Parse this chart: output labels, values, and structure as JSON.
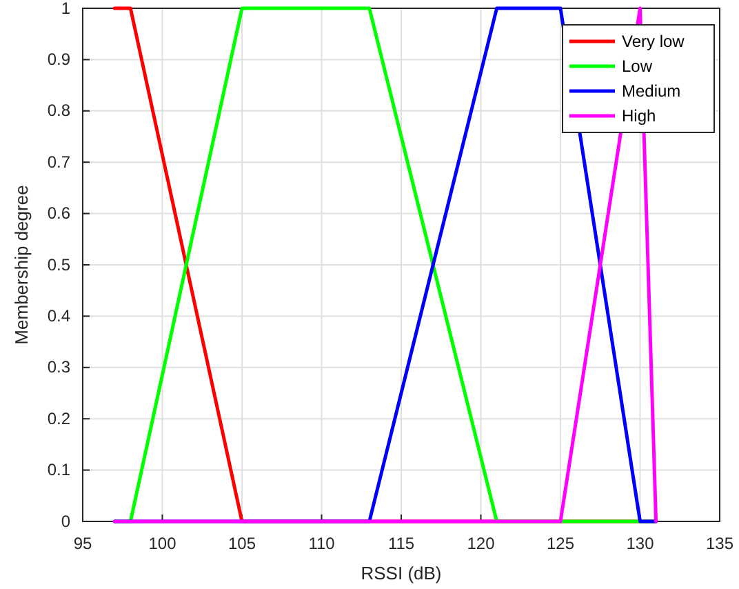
{
  "chart_data": {
    "type": "line",
    "xlabel": "RSSI (dB)",
    "ylabel": "Membership degree",
    "xlim": [
      95,
      135
    ],
    "xticks": [
      95,
      100,
      105,
      110,
      115,
      120,
      125,
      130,
      135
    ],
    "ylim": [
      0,
      1
    ],
    "yticks": [
      0,
      0.1,
      0.2,
      0.3,
      0.4,
      0.5,
      0.6,
      0.7,
      0.8,
      0.9,
      1
    ],
    "grid": true,
    "legend": "top right",
    "line_style": "solid",
    "marker": "none",
    "series": [
      {
        "name": "Very low",
        "color": "#ff0000",
        "x": [
          97,
          98,
          105,
          131
        ],
        "values": [
          1,
          1,
          0,
          0
        ]
      },
      {
        "name": "Low",
        "color": "#00ff00",
        "x": [
          97,
          98,
          105,
          113,
          121,
          131
        ],
        "values": [
          0,
          0,
          1,
          1,
          0,
          0
        ]
      },
      {
        "name": "Medium",
        "color": "#0000ff",
        "x": [
          97,
          113,
          121,
          125,
          130,
          131
        ],
        "values": [
          0,
          0,
          1,
          1,
          0,
          0
        ]
      },
      {
        "name": "High",
        "color": "#ff00ff",
        "x": [
          97,
          125,
          130,
          131
        ],
        "values": [
          0,
          0,
          1,
          0
        ]
      }
    ]
  }
}
